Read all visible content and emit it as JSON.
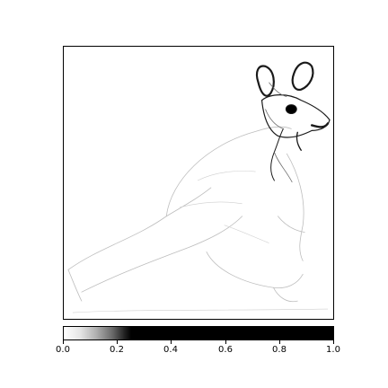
{
  "image": {
    "subject": "kangaroo-sketch",
    "palette": "grayscale-edge-map"
  },
  "colorbar": {
    "ticks": [
      "0.0",
      "0.2",
      "0.4",
      "0.6",
      "0.8",
      "1.0"
    ],
    "range": [
      0.0,
      1.0
    ]
  }
}
